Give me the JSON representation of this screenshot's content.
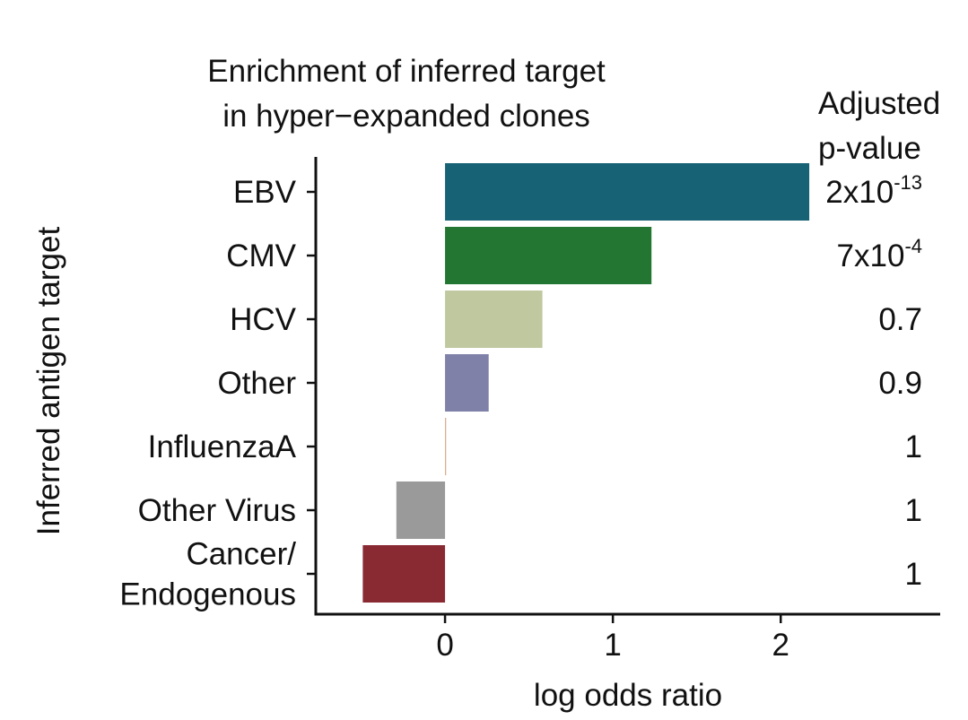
{
  "chart_data": {
    "type": "bar",
    "orientation": "horizontal",
    "title_lines": [
      "Enrichment of inferred target",
      "in hyper−expanded clones"
    ],
    "xlabel": "log odds ratio",
    "ylabel": "Inferred antigen target",
    "xlim": [
      -0.77,
      2.95
    ],
    "xticks": [
      0,
      1,
      2
    ],
    "xtick_labels": [
      "0",
      "1",
      "2"
    ],
    "pvalue_header_lines": [
      "Adjusted",
      "p-value"
    ],
    "categories": [
      {
        "label_lines": [
          "EBV"
        ],
        "value": 2.17,
        "color": "#176274",
        "pvalue": {
          "base": "2x10",
          "exp": "-13"
        }
      },
      {
        "label_lines": [
          "CMV"
        ],
        "value": 1.23,
        "color": "#237632",
        "pvalue": {
          "base": "7x10",
          "exp": "-4"
        }
      },
      {
        "label_lines": [
          "HCV"
        ],
        "value": 0.58,
        "color": "#bfc89f",
        "pvalue": {
          "base": "0.7",
          "exp": ""
        }
      },
      {
        "label_lines": [
          "Other"
        ],
        "value": 0.26,
        "color": "#8081a8",
        "pvalue": {
          "base": "0.9",
          "exp": ""
        }
      },
      {
        "label_lines": [
          "InfluenzaA"
        ],
        "value": 0.005,
        "color": "#d9a887",
        "pvalue": {
          "base": "1",
          "exp": ""
        }
      },
      {
        "label_lines": [
          "Other Virus"
        ],
        "value": -0.29,
        "color": "#9a9a9a",
        "pvalue": {
          "base": "1",
          "exp": ""
        }
      },
      {
        "label_lines": [
          "Cancer/",
          "Endogenous"
        ],
        "value": -0.49,
        "color": "#892a33",
        "pvalue": {
          "base": "1",
          "exp": ""
        }
      }
    ],
    "grid": false,
    "legend": "none"
  }
}
